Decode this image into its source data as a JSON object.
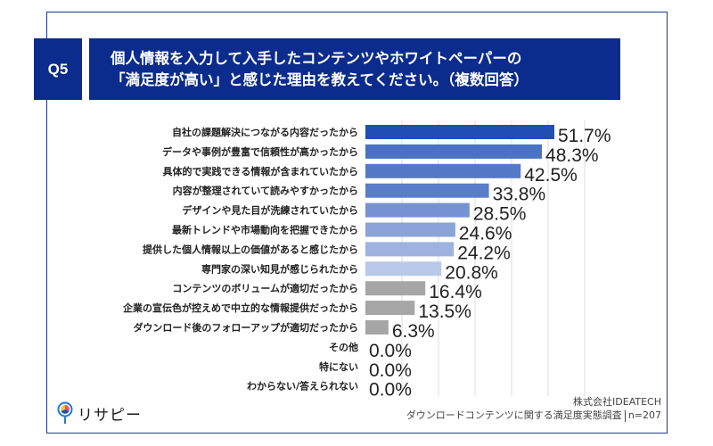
{
  "header": {
    "question_no": "Q5",
    "title_line1": "個人情報を入力して入手したコンテンツやホワイトペーパーの",
    "title_line2": "「満足度が高い」と感じた理由を教えてください。（複数回答）"
  },
  "chart_data": {
    "type": "bar",
    "orientation": "horizontal",
    "title": "個人情報を入力して入手したコンテンツやホワイトペーパーの「満足度が高い」と感じた理由を教えてください。（複数回答）",
    "xlabel": "",
    "ylabel": "",
    "xlim": [
      0,
      60
    ],
    "grid": true,
    "unit": "%",
    "categories": [
      "自社の課題解決につながる内容だったから",
      "データや事例が豊富で信頼性が高かったから",
      "具体的で実践できる情報が含まれていたから",
      "内容が整理されていて読みやすかったから",
      "デザインや見た目が洗練されていたから",
      "最新トレンドや市場動向を把握できたから",
      "提供した個人情報以上の価値があると感じたから",
      "専門家の深い知見が感じられたから",
      "コンテンツのボリュームが適切だったから",
      "企業の宣伝色が控えめで中立的な情報提供だったから",
      "ダウンロード後のフォローアップが適切だったから",
      "その他",
      "特にない",
      "わからない/答えられない"
    ],
    "values": [
      51.7,
      48.3,
      42.5,
      33.8,
      28.5,
      24.6,
      24.2,
      20.8,
      16.4,
      13.5,
      6.3,
      0.0,
      0.0,
      0.0
    ],
    "value_labels": [
      "51.7%",
      "48.3%",
      "42.5%",
      "33.8%",
      "28.5%",
      "24.6%",
      "24.2%",
      "20.8%",
      "16.4%",
      "13.5%",
      "6.3%",
      "0.0%",
      "0.0%",
      "0.0%"
    ],
    "colors": [
      "#1f4eb4",
      "#4a72c4",
      "#5578c7",
      "#5a7dc9",
      "#7592d2",
      "#8aa3d8",
      "#9db2de",
      "#b9c9ea",
      "#a6a6a6",
      "#a6a6a6",
      "#a6a6a6",
      "#a6a6a6",
      "#a6a6a6",
      "#a6a6a6"
    ]
  },
  "footer": {
    "brand": "リサピー",
    "company": "株式会社IDEATECH",
    "survey": "ダウンロードコンテンツに関する満足度実態調査",
    "sample": "n=207"
  },
  "colors": {
    "header_bg": "#0b2c8c",
    "frame": "#1e3a8a",
    "grid": "#dcdcdc"
  }
}
